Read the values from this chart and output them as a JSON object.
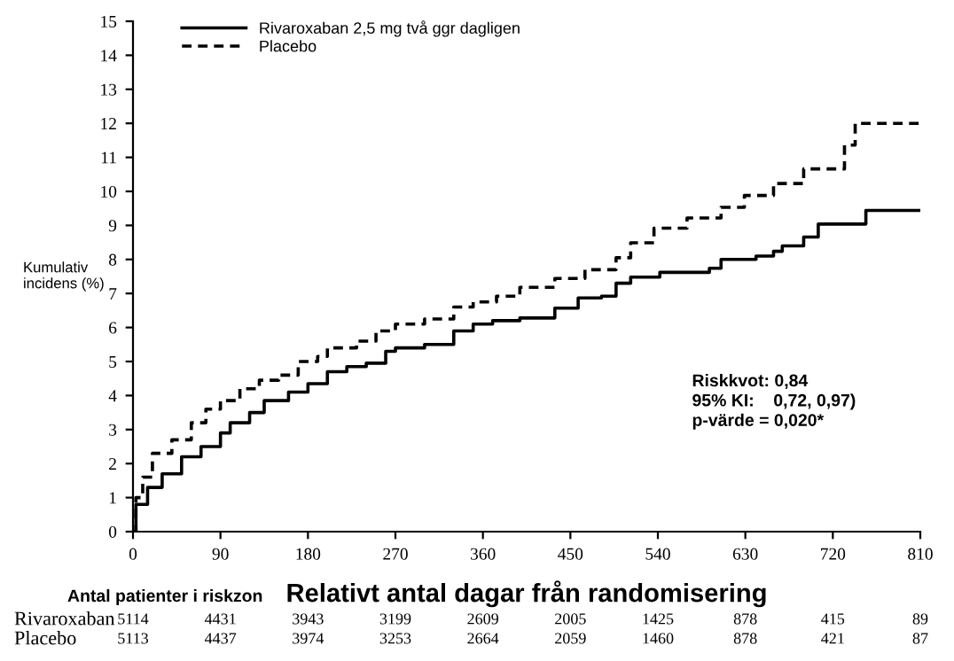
{
  "chart_data": {
    "type": "step",
    "xlabel": "Relativt antal dagar från randomisering",
    "ylabel": "Kumulativ\nincidens (%)",
    "xlim": [
      0,
      810
    ],
    "xticks": [
      0,
      90,
      180,
      270,
      360,
      450,
      540,
      630,
      720,
      810
    ],
    "ylim": [
      0,
      15
    ],
    "yticks": [
      0,
      1,
      2,
      3,
      4,
      5,
      6,
      7,
      8,
      9,
      10,
      11,
      12,
      13,
      14,
      15
    ],
    "grid": false,
    "legend": "top left",
    "marker": "none",
    "series": [
      {
        "name": "Rivaroxaban 2,5 mg två ggr dagligen",
        "color": "#000000",
        "line_style": "solid",
        "x": [
          0,
          3,
          15,
          30,
          50,
          70,
          90,
          100,
          120,
          135,
          160,
          180,
          200,
          220,
          240,
          260,
          270,
          300,
          330,
          350,
          370,
          398,
          434,
          458,
          482,
          497,
          512,
          542,
          593,
          605,
          641,
          659,
          668,
          690,
          705,
          754,
          810
        ],
        "values": [
          0,
          0.8,
          1.3,
          1.7,
          2.2,
          2.5,
          2.9,
          3.2,
          3.5,
          3.85,
          4.1,
          4.35,
          4.7,
          4.85,
          4.95,
          5.3,
          5.4,
          5.5,
          5.9,
          6.1,
          6.2,
          6.28,
          6.57,
          6.87,
          6.92,
          7.3,
          7.48,
          7.62,
          7.74,
          8.0,
          8.1,
          8.24,
          8.4,
          8.66,
          9.04,
          9.44,
          9.44
        ]
      },
      {
        "name": "Placebo",
        "color": "#000000",
        "line_style": "dashed",
        "x": [
          0,
          3,
          10,
          20,
          40,
          60,
          75,
          90,
          110,
          130,
          150,
          170,
          190,
          200,
          230,
          250,
          270,
          300,
          330,
          350,
          374,
          398,
          434,
          465,
          497,
          512,
          536,
          570,
          605,
          629,
          659,
          690,
          732,
          743,
          810
        ],
        "values": [
          0,
          1.0,
          1.6,
          2.3,
          2.7,
          3.2,
          3.6,
          3.85,
          4.2,
          4.45,
          4.6,
          5.0,
          5.15,
          5.4,
          5.6,
          5.9,
          6.1,
          6.25,
          6.6,
          6.75,
          6.92,
          7.18,
          7.44,
          7.7,
          8.05,
          8.49,
          8.92,
          9.22,
          9.53,
          9.88,
          10.23,
          10.66,
          11.36,
          12.0,
          12.0
        ]
      }
    ],
    "annotations": [
      "Riskkvot: 0,84\n95% KI:    0,72, 0,97)\np-värde = 0,020*",
      "Antal patienter i riskzon",
      "Rivaroxaban 5114 4431 3943 3199 2609 2005 1425 878 415 89",
      "Placebo 5113 4437 3974 3253 2664 2059 1460 878 421 87"
    ]
  }
}
